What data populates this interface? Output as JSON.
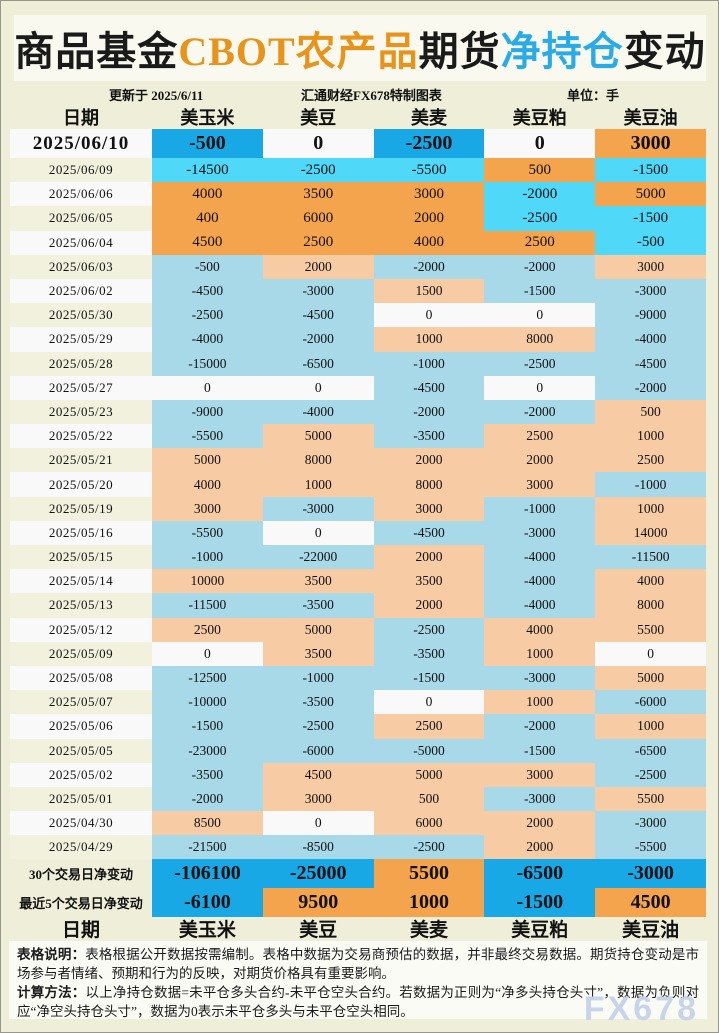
{
  "title": {
    "segments": [
      {
        "text": "商品基金",
        "tone": "black"
      },
      {
        "text": "CBOT农产品",
        "tone": "orange"
      },
      {
        "text": "期货",
        "tone": "black"
      },
      {
        "text": "净持仓",
        "tone": "blue"
      },
      {
        "text": "变动",
        "tone": "black"
      }
    ]
  },
  "subtitle": {
    "updated": "更新于 2025/6/11",
    "source": "汇通财经FX678特制图表",
    "unit": "单位：手"
  },
  "chart_data": {
    "type": "table",
    "title": "商品基金CBOT农产品期货净持仓变动",
    "unit": "手",
    "columns": [
      "日期",
      "美玉米",
      "美豆",
      "美麦",
      "美豆粕",
      "美豆油"
    ],
    "rows": [
      {
        "date": "2025/06/10",
        "values": [
          -500,
          0,
          -2500,
          0,
          3000
        ]
      },
      {
        "date": "2025/06/09",
        "values": [
          -14500,
          -2500,
          -5500,
          500,
          -1500
        ]
      },
      {
        "date": "2025/06/06",
        "values": [
          4000,
          3500,
          3000,
          -2000,
          5000
        ]
      },
      {
        "date": "2025/06/05",
        "values": [
          400,
          6000,
          2000,
          -2500,
          -1500
        ]
      },
      {
        "date": "2025/06/04",
        "values": [
          4500,
          2500,
          4000,
          2500,
          -500
        ]
      },
      {
        "date": "2025/06/03",
        "values": [
          -500,
          2000,
          -2000,
          -2000,
          3000
        ]
      },
      {
        "date": "2025/06/02",
        "values": [
          -4500,
          -3000,
          1500,
          -1500,
          -3000
        ]
      },
      {
        "date": "2025/05/30",
        "values": [
          -2500,
          -4500,
          0,
          0,
          -9000
        ]
      },
      {
        "date": "2025/05/29",
        "values": [
          -4000,
          -2000,
          1000,
          8000,
          -4000
        ]
      },
      {
        "date": "2025/05/28",
        "values": [
          -15000,
          -6500,
          -1000,
          -2500,
          -4500
        ]
      },
      {
        "date": "2025/05/27",
        "values": [
          0,
          0,
          -4500,
          0,
          -2000
        ]
      },
      {
        "date": "2025/05/23",
        "values": [
          -9000,
          -4000,
          -2000,
          -2000,
          500
        ]
      },
      {
        "date": "2025/05/22",
        "values": [
          -5500,
          5000,
          -3500,
          2500,
          1000
        ]
      },
      {
        "date": "2025/05/21",
        "values": [
          5000,
          8000,
          2000,
          2000,
          2500
        ]
      },
      {
        "date": "2025/05/20",
        "values": [
          4000,
          1000,
          8000,
          3000,
          -1000
        ]
      },
      {
        "date": "2025/05/19",
        "values": [
          3000,
          -3000,
          3000,
          -1000,
          1000
        ]
      },
      {
        "date": "2025/05/16",
        "values": [
          -5500,
          0,
          -4500,
          -3000,
          14000
        ]
      },
      {
        "date": "2025/05/15",
        "values": [
          -1000,
          -22000,
          2000,
          -4000,
          -11500
        ]
      },
      {
        "date": "2025/05/14",
        "values": [
          10000,
          3500,
          3500,
          -4000,
          4000
        ]
      },
      {
        "date": "2025/05/13",
        "values": [
          -11500,
          -3500,
          2000,
          -4000,
          8000
        ]
      },
      {
        "date": "2025/05/12",
        "values": [
          2500,
          5000,
          -2500,
          4000,
          5500
        ]
      },
      {
        "date": "2025/05/09",
        "values": [
          0,
          3500,
          -3500,
          1000,
          0
        ]
      },
      {
        "date": "2025/05/08",
        "values": [
          -12500,
          -1000,
          -1500,
          -3000,
          5000
        ]
      },
      {
        "date": "2025/05/07",
        "values": [
          -10000,
          -3500,
          0,
          1000,
          -6000
        ]
      },
      {
        "date": "2025/05/06",
        "values": [
          -1500,
          -2500,
          2500,
          -2000,
          1000
        ]
      },
      {
        "date": "2025/05/05",
        "values": [
          -23000,
          -6000,
          -5000,
          -1500,
          -6500
        ]
      },
      {
        "date": "2025/05/02",
        "values": [
          -3500,
          4500,
          5000,
          3000,
          -2500
        ]
      },
      {
        "date": "2025/05/01",
        "values": [
          -2000,
          3000,
          500,
          -3000,
          5500
        ]
      },
      {
        "date": "2025/04/30",
        "values": [
          8500,
          0,
          6000,
          2000,
          -3000
        ]
      },
      {
        "date": "2025/04/29",
        "values": [
          -21500,
          -8500,
          -2500,
          2000,
          -5500
        ]
      }
    ],
    "summary": [
      {
        "label": "30个交易日净变动",
        "values": [
          -106100,
          -25000,
          5500,
          -6500,
          -3000
        ]
      },
      {
        "label": "最近5个交易日净变动",
        "values": [
          -6100,
          9500,
          1000,
          -1500,
          4500
        ]
      }
    ],
    "bottom_columns": [
      "日期",
      "美玉米",
      "美豆",
      "美麦",
      "美豆粕",
      "美豆油"
    ]
  },
  "footer": {
    "note1_label": "表格说明：",
    "note1_text": "表格根据公开数据按需编制。表格中数据为交易商预估的数据，并非最终交易数据。期货持仓变动是市场参与者情绪、预期和行为的反映，对期货价格具有重要影响。",
    "note2_label": "计算方法：",
    "note2_text": "以上净持仓数据=未平仓多头合约-未平仓空头合约。若数据为正则为“净多头持仓头寸”，数据为负则对应“净空头持仓头寸”，数据为0表示未平仓多头与未平仓空头相同。",
    "watermark": "FX678"
  },
  "colors": {
    "page_bg": "#EFEFD9",
    "panel_bg": "#F9F9F0",
    "blue_strong": "#18A8E6",
    "cyan_bright": "#4FD8F8",
    "orange_bright": "#F4A44C",
    "blue_muted": "#A7D9E9",
    "peach_muted": "#F7CBA3",
    "zero_white": "#F9F9F9",
    "date_white": "#F9F9F9",
    "date_cream": "#F1F1DD",
    "title_orange": "#E8941A",
    "title_blue": "#29ABE8",
    "watermark": "#C5D4EA"
  }
}
